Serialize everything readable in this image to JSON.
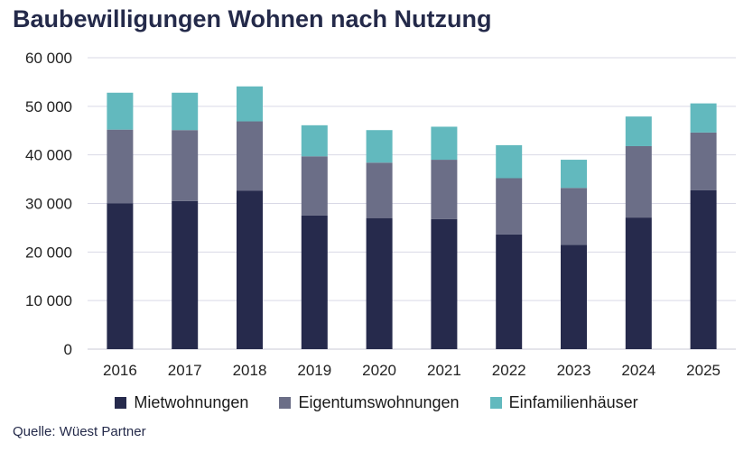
{
  "title": "Baubewilligungen Wohnen nach Nutzung",
  "source": "Quelle: Wüest Partner",
  "colors": {
    "Mietwohnungen": "#262a4c",
    "Eigentumswohnungen": "#6b6e87",
    "Einfamilienhäuser": "#62b9be",
    "grid": "#d9d9e6"
  },
  "chart_data": {
    "type": "bar",
    "stacked": true,
    "title": "Baubewilligungen Wohnen nach Nutzung",
    "xlabel": "",
    "ylabel": "",
    "ylim": [
      0,
      60000
    ],
    "yticks": [
      0,
      10000,
      20000,
      30000,
      40000,
      50000,
      60000
    ],
    "ytick_labels": [
      "0",
      "10 000",
      "20 000",
      "30 000",
      "40 000",
      "50 000",
      "60 000"
    ],
    "categories": [
      "2016",
      "2017",
      "2018",
      "2019",
      "2020",
      "2021",
      "2022",
      "2023",
      "2024",
      "2025"
    ],
    "legend_position": "bottom",
    "grid": true,
    "series": [
      {
        "name": "Mietwohnungen",
        "values": [
          30000,
          30500,
          32600,
          27500,
          27000,
          26800,
          23600,
          21500,
          27100,
          32700
        ]
      },
      {
        "name": "Eigentumswohnungen",
        "values": [
          15200,
          14600,
          14300,
          12200,
          11400,
          12200,
          11600,
          11700,
          14700,
          11900
        ]
      },
      {
        "name": "Einfamilienhäuser",
        "values": [
          7600,
          7700,
          7200,
          6400,
          6700,
          6800,
          6800,
          5800,
          6100,
          6000
        ]
      }
    ]
  }
}
